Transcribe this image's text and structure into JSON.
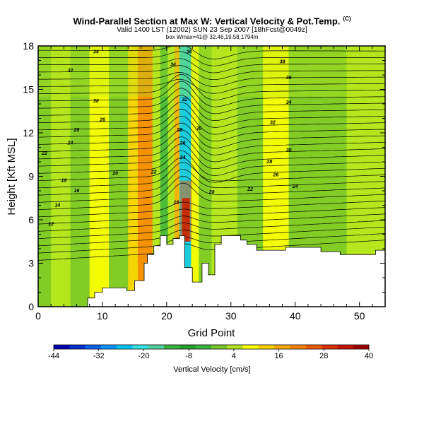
{
  "header": {
    "title": "Wind-Parallel Section at Max W: Vertical Velocity & Pot.Temp.",
    "title_mark": "(C)",
    "subtitle": "Valid 1400 LST (12002) SUN 23 Sep 2007 [18hFcst@0049z]",
    "info": "box Wmax=41@ 32.46,19.58,1794m"
  },
  "chart_data": {
    "type": "heatmap",
    "xlabel": "Grid Point",
    "ylabel": "Height [Kft MSL]",
    "xlim": [
      0,
      54
    ],
    "ylim": [
      0,
      18
    ],
    "x_ticks": [
      0,
      10,
      20,
      30,
      40,
      50
    ],
    "y_ticks": [
      0,
      3,
      6,
      9,
      12,
      15,
      18
    ],
    "terrain": [
      [
        0,
        0
      ],
      [
        7.7,
        0
      ],
      [
        7.7,
        0.6
      ],
      [
        8.8,
        0.6
      ],
      [
        8.8,
        1
      ],
      [
        10,
        1
      ],
      [
        10,
        1.3
      ],
      [
        12,
        1.3
      ],
      [
        12,
        1.3
      ],
      [
        13.8,
        1.3
      ],
      [
        13.8,
        1.1
      ],
      [
        15,
        1.1
      ],
      [
        15,
        1.8
      ],
      [
        16.5,
        1.8
      ],
      [
        16.5,
        3
      ],
      [
        17,
        3
      ],
      [
        17,
        3.6
      ],
      [
        18,
        3.6
      ],
      [
        18,
        4.2
      ],
      [
        19,
        4.2
      ],
      [
        19,
        4.9
      ],
      [
        20,
        4.9
      ],
      [
        20,
        4.3
      ],
      [
        21,
        4.3
      ],
      [
        21,
        4.7
      ],
      [
        22,
        4.7
      ],
      [
        22,
        4.9
      ],
      [
        22.8,
        4.9
      ],
      [
        22.8,
        2.7
      ],
      [
        24,
        2.7
      ],
      [
        24,
        1.7
      ],
      [
        25.5,
        1.7
      ],
      [
        25.5,
        3
      ],
      [
        26.5,
        3
      ],
      [
        26.5,
        2.2
      ],
      [
        27.5,
        2.2
      ],
      [
        27.5,
        4.3
      ],
      [
        28.5,
        4.3
      ],
      [
        28.5,
        4.9
      ],
      [
        31.5,
        4.9
      ],
      [
        31.5,
        4.6
      ],
      [
        32.5,
        4.6
      ],
      [
        32.5,
        4.3
      ],
      [
        34,
        4.3
      ],
      [
        34,
        3.9
      ],
      [
        38.5,
        3.9
      ],
      [
        38.5,
        4.1
      ],
      [
        44,
        4.1
      ],
      [
        44,
        3.8
      ],
      [
        47,
        3.8
      ],
      [
        47,
        3.6
      ],
      [
        52.5,
        3.6
      ],
      [
        52.5,
        3.9
      ],
      [
        54,
        3.9
      ],
      [
        54,
        0
      ]
    ],
    "velocity_bands": [
      {
        "x0": 0,
        "x1": 2,
        "value": 0
      },
      {
        "x0": 2,
        "x1": 5,
        "value": 6
      },
      {
        "x0": 5,
        "x1": 8,
        "value": 0
      },
      {
        "x0": 8,
        "x1": 11,
        "value": 8
      },
      {
        "x0": 11,
        "x1": 14,
        "value": -2
      },
      {
        "x0": 14,
        "x1": 15.5,
        "value": 12
      },
      {
        "x0": 15.5,
        "x1": 17.8,
        "value": 22
      },
      {
        "x0": 17.8,
        "x1": 19,
        "value": 4
      },
      {
        "x0": 19,
        "x1": 20.2,
        "value": -6
      },
      {
        "x0": 20.2,
        "x1": 21.2,
        "value": 4
      },
      {
        "x0": 21.2,
        "x1": 22,
        "value": 18
      },
      {
        "x0": 22,
        "x1": 23.8,
        "value": -24
      },
      {
        "x0": 23.8,
        "x1": 25,
        "value": 10
      },
      {
        "x0": 25,
        "x1": 27,
        "value": 2
      },
      {
        "x0": 27,
        "x1": 31,
        "value": 6
      },
      {
        "x0": 31,
        "x1": 35,
        "value": 0
      },
      {
        "x0": 35,
        "x1": 39,
        "value": 8
      },
      {
        "x0": 39,
        "x1": 44,
        "value": 2
      },
      {
        "x0": 44,
        "x1": 48,
        "value": -2
      },
      {
        "x0": 48,
        "x1": 54,
        "value": 6
      }
    ],
    "updraft_core": {
      "x": 23,
      "y_low": 4.5,
      "y_high": 7.5,
      "value": 40
    },
    "contour_labels": [
      {
        "text": "34",
        "x": 9,
        "y": 17.5
      },
      {
        "text": "36",
        "x": 23.5,
        "y": 17.5
      },
      {
        "text": "32",
        "x": 5,
        "y": 16.2
      },
      {
        "text": "34",
        "x": 21,
        "y": 16.6
      },
      {
        "text": "38",
        "x": 38,
        "y": 16.8
      },
      {
        "text": "36",
        "x": 39,
        "y": 15.7
      },
      {
        "text": "30",
        "x": 9,
        "y": 14.1
      },
      {
        "text": "34",
        "x": 39,
        "y": 14
      },
      {
        "text": "28",
        "x": 6,
        "y": 12.1
      },
      {
        "text": "26",
        "x": 10,
        "y": 12.8
      },
      {
        "text": "32",
        "x": 36.5,
        "y": 12.6
      },
      {
        "text": "30",
        "x": 25,
        "y": 12.2
      },
      {
        "text": "24",
        "x": 5,
        "y": 11.2
      },
      {
        "text": "30",
        "x": 39,
        "y": 10.7
      },
      {
        "text": "22",
        "x": 1,
        "y": 10.5
      },
      {
        "text": "28",
        "x": 36,
        "y": 9.9
      },
      {
        "text": "20",
        "x": 12,
        "y": 9.1
      },
      {
        "text": "22",
        "x": 18,
        "y": 9.2
      },
      {
        "text": "26",
        "x": 37,
        "y": 9.0
      },
      {
        "text": "18",
        "x": 4,
        "y": 8.6
      },
      {
        "text": "24",
        "x": 40,
        "y": 8.2
      },
      {
        "text": "16",
        "x": 6,
        "y": 7.9
      },
      {
        "text": "22",
        "x": 33,
        "y": 8.0
      },
      {
        "text": "20",
        "x": 27,
        "y": 7.8
      },
      {
        "text": "14",
        "x": 3,
        "y": 6.9
      },
      {
        "text": "12",
        "x": 2,
        "y": 5.6
      },
      {
        "text": "16",
        "x": 21.5,
        "y": 7.1
      },
      {
        "text": "26",
        "x": 22.5,
        "y": 11.2
      },
      {
        "text": "24",
        "x": 22.5,
        "y": 10.2
      },
      {
        "text": "28",
        "x": 22,
        "y": 12.1
      },
      {
        "text": "32",
        "x": 22.8,
        "y": 14.2
      }
    ]
  },
  "colorbar": {
    "ticks": [
      "-44",
      "-32",
      "-20",
      "-8",
      "4",
      "16",
      "28",
      "40"
    ],
    "label": "Vertical Velocity [cm/s]",
    "colors": [
      "#0000b4",
      "#0032d2",
      "#0064f0",
      "#0096ff",
      "#00c8ff",
      "#32e6e6",
      "#50d2a0",
      "#3cb43c",
      "#28a028",
      "#3cb43c",
      "#78c828",
      "#b4e61e",
      "#ffff00",
      "#ffd200",
      "#ffaa00",
      "#ff8200",
      "#f05a00",
      "#dc3200",
      "#c81400",
      "#a00000"
    ],
    "range": [
      -44,
      40
    ]
  }
}
